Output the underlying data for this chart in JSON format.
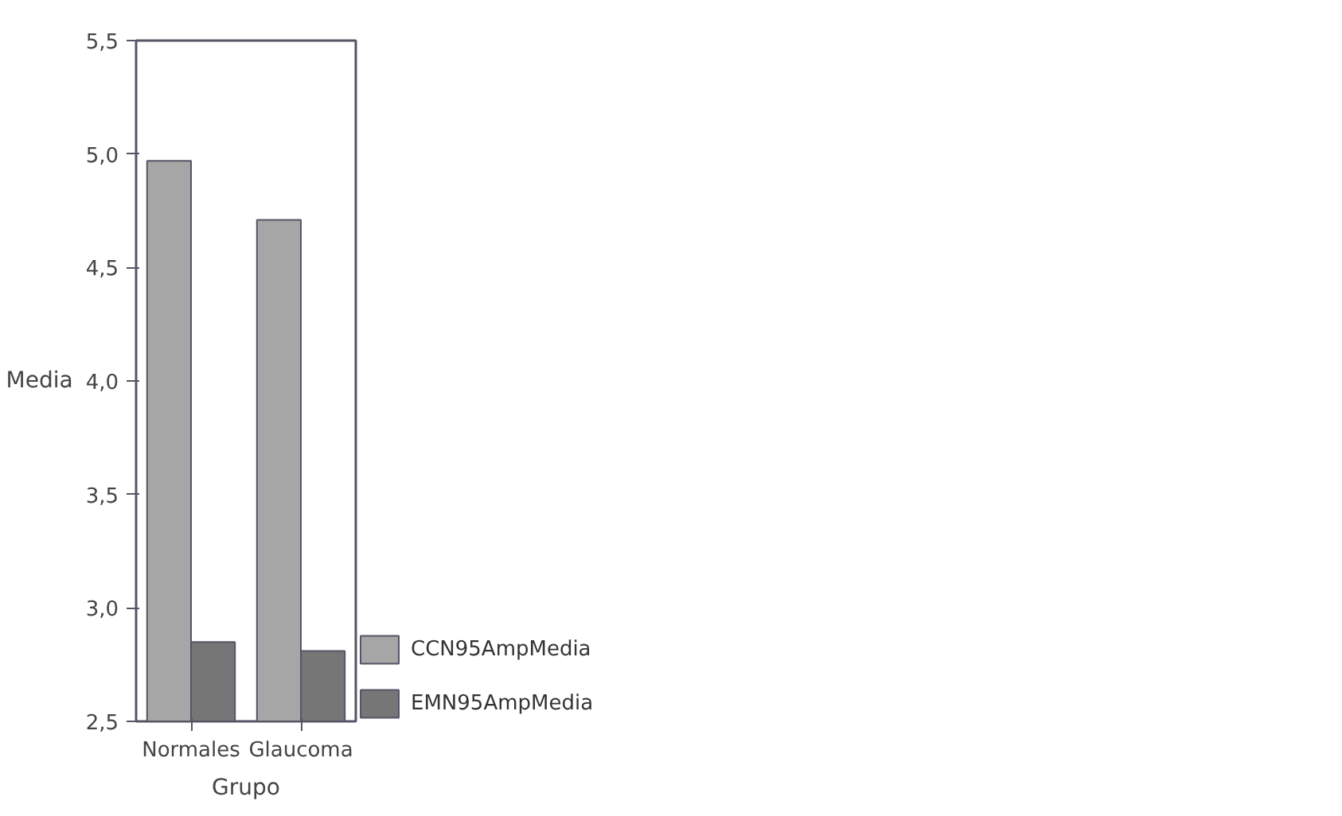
{
  "chart_data": {
    "type": "bar",
    "xlabel": "Grupo",
    "ylabel": "Media",
    "categories": [
      "Normales",
      "Glaucoma"
    ],
    "series": [
      {
        "name": "CCN95AmpMedia",
        "color": "#a6a6a6",
        "values": [
          4.97,
          4.71
        ]
      },
      {
        "name": "EMN95AmpMedia",
        "color": "#767676",
        "values": [
          2.85,
          2.81
        ]
      }
    ],
    "ylim": [
      2.5,
      5.5
    ],
    "yticks": [
      {
        "value": 2.5,
        "label": "2,5"
      },
      {
        "value": 3.0,
        "label": "3,0"
      },
      {
        "value": 3.5,
        "label": "3,5"
      },
      {
        "value": 4.0,
        "label": "4,0"
      },
      {
        "value": 4.5,
        "label": "4,5"
      },
      {
        "value": 5.0,
        "label": "5,0"
      },
      {
        "value": 5.5,
        "label": "5,5"
      }
    ],
    "grid": false,
    "legend": "bottom right"
  }
}
